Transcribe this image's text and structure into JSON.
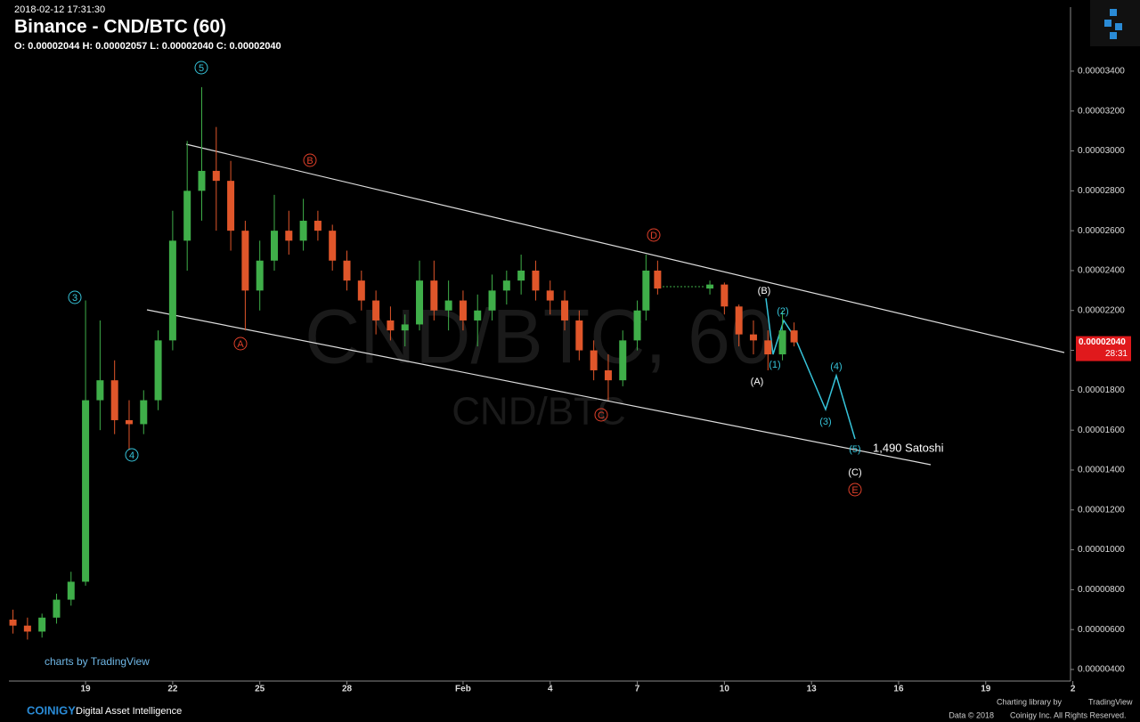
{
  "header": {
    "timestamp": "2018-02-12 17:31:30",
    "title": "Binance - CND/BTC (60)",
    "ohlc": "O: 0.00002044 H: 0.00002057 L: 0.00002040 C: 0.00002040"
  },
  "chart_data": {
    "type": "candlestick",
    "watermark": "CND/BTC, 60",
    "watermark_small": "CND/BTC",
    "up_color": "#3fae49",
    "down_color": "#e0562a",
    "x": [
      16.5,
      17.0,
      17.5,
      18.0,
      18.5,
      19.0,
      19.5,
      20.0,
      20.5,
      21.0,
      21.5,
      22.0,
      22.5,
      23.0,
      23.5,
      24.0,
      24.5,
      25.0,
      25.5,
      26.0,
      26.5,
      27.0,
      27.5,
      28.0,
      28.5,
      29.0,
      29.5,
      30.0,
      30.5,
      31.0,
      31.5,
      32.0,
      32.5,
      33.0,
      33.5,
      34.0,
      34.5,
      35.0,
      35.5,
      36.0,
      36.5,
      37.0,
      37.5,
      38.0,
      38.3,
      38.7,
      40.5,
      41.0,
      41.5,
      42.0,
      42.5,
      43.0,
      43.4
    ],
    "open": [
      6.5e-06,
      6.2e-06,
      5.9e-06,
      6.6e-06,
      7.5e-06,
      8.4e-06,
      1.75e-05,
      1.85e-05,
      1.65e-05,
      1.63e-05,
      1.75e-05,
      2.05e-05,
      2.55e-05,
      2.8e-05,
      2.9e-05,
      2.85e-05,
      2.6e-05,
      2.3e-05,
      2.45e-05,
      2.6e-05,
      2.55e-05,
      2.65e-05,
      2.6e-05,
      2.45e-05,
      2.35e-05,
      2.25e-05,
      2.15e-05,
      2.1e-05,
      2.13e-05,
      2.35e-05,
      2.2e-05,
      2.25e-05,
      2.15e-05,
      2.2e-05,
      2.3e-05,
      2.35e-05,
      2.4e-05,
      2.3e-05,
      2.25e-05,
      2.15e-05,
      2e-05,
      1.9e-05,
      1.85e-05,
      2.05e-05,
      2.2e-05,
      2.4e-05,
      2.31e-05,
      2.33e-05,
      2.22e-05,
      2.08e-05,
      2.05e-05,
      1.98e-05,
      2.1e-05
    ],
    "high": [
      7e-06,
      6.6e-06,
      6.8e-06,
      7.8e-06,
      8.9e-06,
      2.25e-05,
      2.15e-05,
      1.95e-05,
      1.75e-05,
      1.8e-05,
      2.1e-05,
      2.7e-05,
      3.05e-05,
      3.32e-05,
      3.12e-05,
      2.95e-05,
      2.65e-05,
      2.55e-05,
      2.78e-05,
      2.7e-05,
      2.76e-05,
      2.7e-05,
      2.63e-05,
      2.5e-05,
      2.4e-05,
      2.3e-05,
      2.22e-05,
      2.18e-05,
      2.45e-05,
      2.45e-05,
      2.35e-05,
      2.3e-05,
      2.28e-05,
      2.38e-05,
      2.4e-05,
      2.48e-05,
      2.45e-05,
      2.35e-05,
      2.3e-05,
      2.2e-05,
      2.05e-05,
      1.98e-05,
      2.1e-05,
      2.25e-05,
      2.48e-05,
      2.45e-05,
      2.35e-05,
      2.34e-05,
      2.23e-05,
      2.15e-05,
      2.1e-05,
      2.2e-05,
      2.14e-05
    ],
    "low": [
      5.8e-06,
      5.5e-06,
      5.6e-06,
      6.3e-06,
      7.2e-06,
      8.2e-06,
      1.6e-05,
      1.58e-05,
      1.5e-05,
      1.58e-05,
      1.7e-05,
      2e-05,
      2.4e-05,
      2.65e-05,
      2.6e-05,
      2.5e-05,
      2.1e-05,
      2.2e-05,
      2.4e-05,
      2.48e-05,
      2.5e-05,
      2.55e-05,
      2.4e-05,
      2.3e-05,
      2.2e-05,
      2.08e-05,
      2.05e-05,
      2.02e-05,
      2.1e-05,
      2.15e-05,
      2.1e-05,
      2.1e-05,
      2.02e-05,
      2.15e-05,
      2.23e-05,
      2.28e-05,
      2.25e-05,
      2.18e-05,
      2.1e-05,
      1.95e-05,
      1.85e-05,
      1.75e-05,
      1.82e-05,
      2e-05,
      2.15e-05,
      2.28e-05,
      2.28e-05,
      2.18e-05,
      2.02e-05,
      1.98e-05,
      1.9e-05,
      1.95e-05,
      2.02e-05
    ],
    "close": [
      6.2e-06,
      5.9e-06,
      6.6e-06,
      7.5e-06,
      8.4e-06,
      1.75e-05,
      1.85e-05,
      1.65e-05,
      1.63e-05,
      1.75e-05,
      2.05e-05,
      2.55e-05,
      2.8e-05,
      2.9e-05,
      2.85e-05,
      2.6e-05,
      2.3e-05,
      2.45e-05,
      2.6e-05,
      2.55e-05,
      2.65e-05,
      2.6e-05,
      2.45e-05,
      2.35e-05,
      2.25e-05,
      2.15e-05,
      2.1e-05,
      2.13e-05,
      2.35e-05,
      2.2e-05,
      2.25e-05,
      2.15e-05,
      2.2e-05,
      2.3e-05,
      2.35e-05,
      2.4e-05,
      2.3e-05,
      2.25e-05,
      2.15e-05,
      2e-05,
      1.9e-05,
      1.85e-05,
      2.05e-05,
      2.2e-05,
      2.4e-05,
      2.31e-05,
      2.33e-05,
      2.22e-05,
      2.08e-05,
      2.05e-05,
      1.98e-05,
      2.1e-05,
      2.04e-05
    ],
    "xlim": [
      16.36,
      52.92
    ],
    "xticks": [
      19,
      22,
      25,
      28,
      {
        "value": 32,
        "label": "Feb"
      },
      {
        "value": 35,
        "label": "4"
      },
      {
        "value": 38,
        "label": "7"
      },
      {
        "value": 41,
        "label": "10"
      },
      {
        "value": 44,
        "label": "13"
      },
      {
        "value": 47,
        "label": "16"
      },
      {
        "value": 50,
        "label": "19"
      },
      {
        "value": 53,
        "label": "2"
      }
    ],
    "ylim": [
      3.42e-06,
      3.721e-05
    ],
    "yticks": [
      {
        "value": 4e-06,
        "label": "0.00000400"
      },
      {
        "value": 6e-06,
        "label": "0.00000600"
      },
      {
        "value": 8e-06,
        "label": "0.00000800"
      },
      {
        "value": 1e-05,
        "label": "0.00001000"
      },
      {
        "value": 1.2e-05,
        "label": "0.00001200"
      },
      {
        "value": 1.4e-05,
        "label": "0.00001400"
      },
      {
        "value": 1.6e-05,
        "label": "0.00001600"
      },
      {
        "value": 1.8e-05,
        "label": "0.00001800"
      },
      {
        "value": 2e-05,
        "label": "0.00002000"
      },
      {
        "value": 2.2e-05,
        "label": "0.00002200"
      },
      {
        "value": 2.4e-05,
        "label": "0.00002400"
      },
      {
        "value": 2.6e-05,
        "label": "0.00002600"
      },
      {
        "value": 2.8e-05,
        "label": "0.00002800"
      },
      {
        "value": 3e-05,
        "label": "0.00003000"
      },
      {
        "value": 3.2e-05,
        "label": "0.00003200"
      },
      {
        "value": 3.4e-05,
        "label": "0.00003400"
      }
    ],
    "last_price": {
      "value": 2.04e-05,
      "label": "0.00002040"
    },
    "countdown": "28:31",
    "wave_labels": [
      "5",
      "3",
      "4",
      "A",
      "B",
      "C",
      "D",
      "E",
      "(A)",
      "(B)",
      "(C)",
      "(1)",
      "(2)",
      "(3)",
      "(4)",
      "(5)"
    ],
    "target_label": "1,490 Satoshi"
  },
  "footer": {
    "tv_badge": "charts by TradingView",
    "brand": "COINIGY",
    "tagline": "Digital Asset Intelligence",
    "library": "Charting library by",
    "library_name": "TradingView",
    "data_credit": "Data © 2018",
    "rights": "Coinigy Inc. All Rights Reserved."
  }
}
